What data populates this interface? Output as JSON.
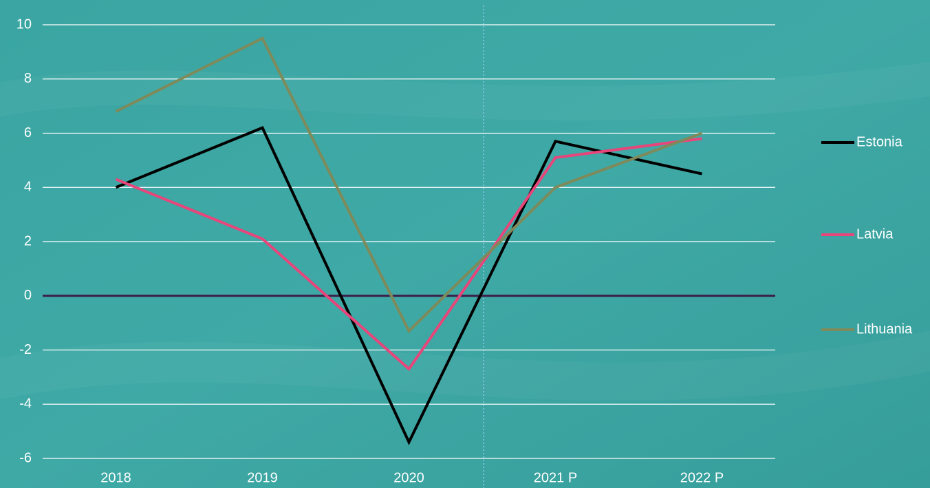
{
  "chart_data": {
    "type": "line",
    "categories": [
      "2018",
      "2019",
      "2020",
      "2021 P",
      "2022 P"
    ],
    "series": [
      {
        "name": "Estonia",
        "color": "#000000",
        "values": [
          4.0,
          6.2,
          -5.4,
          5.7,
          4.5
        ]
      },
      {
        "name": "Latvia",
        "color": "#e8457a",
        "values": [
          4.3,
          2.1,
          -2.7,
          5.1,
          5.8
        ]
      },
      {
        "name": "Lithuania",
        "color": "#7f8a5a",
        "values": [
          6.8,
          9.5,
          -1.3,
          4.0,
          6.0
        ]
      }
    ],
    "ylim": [
      -6,
      10
    ],
    "yticks": [
      -6,
      -4,
      -2,
      0,
      2,
      4,
      6,
      8,
      10
    ],
    "grid": true,
    "legend": "right"
  }
}
